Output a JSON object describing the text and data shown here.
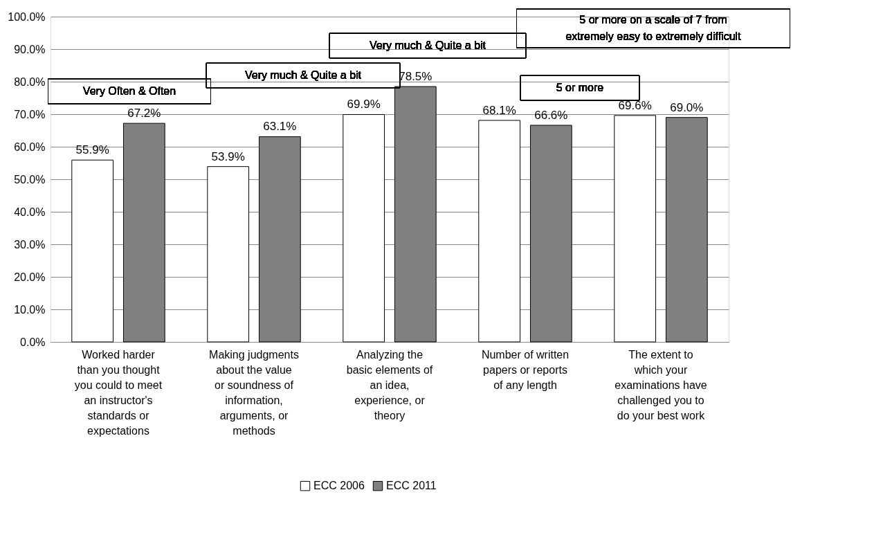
{
  "chart_data": {
    "type": "bar",
    "categories": [
      "Worked harder than you thought you could to meet an instructor's standards or expectations",
      "Making judgments about the value or soundness of information, arguments, or methods",
      "Analyzing the basic elements of an idea, experience, or theory",
      "Number of written papers or reports of any length",
      "The extent to which your examinations have challenged you to do your best work"
    ],
    "series": [
      {
        "name": "ECC 2006",
        "color": "#ffffff",
        "values": [
          55.9,
          53.9,
          69.9,
          68.1,
          69.6
        ],
        "value_labels": [
          "55.9%",
          "53.9%",
          "69.9%",
          "68.1%",
          "69.6%"
        ]
      },
      {
        "name": "ECC 2011",
        "color": "#808080",
        "values": [
          67.2,
          63.1,
          78.5,
          66.6,
          69.0
        ],
        "value_labels": [
          "67.2%",
          "63.1%",
          "78.5%",
          "66.6%",
          "69.0%"
        ]
      }
    ],
    "ylim": [
      0,
      100
    ],
    "yticks": [
      {
        "value": 0,
        "label": "0.0%"
      },
      {
        "value": 10,
        "label": "10.0%"
      },
      {
        "value": 20,
        "label": "20.0%"
      },
      {
        "value": 30,
        "label": "30.0%"
      },
      {
        "value": 40,
        "label": "40.0%"
      },
      {
        "value": 50,
        "label": "50.0%"
      },
      {
        "value": 60,
        "label": "60.0%"
      },
      {
        "value": 70,
        "label": "70.0%"
      },
      {
        "value": 80,
        "label": "80.0%"
      },
      {
        "value": 90,
        "label": "90.0%"
      },
      {
        "value": 100,
        "label": "100.0%"
      }
    ],
    "grid": "y",
    "legend": "bottom",
    "annotations": [
      "Very Often & Often",
      "Very much & Quite a bit",
      "Very much & Quite a bit",
      "5 or more",
      "5 or more on a scale of 7 from extremely easy to extremely difficult"
    ]
  }
}
